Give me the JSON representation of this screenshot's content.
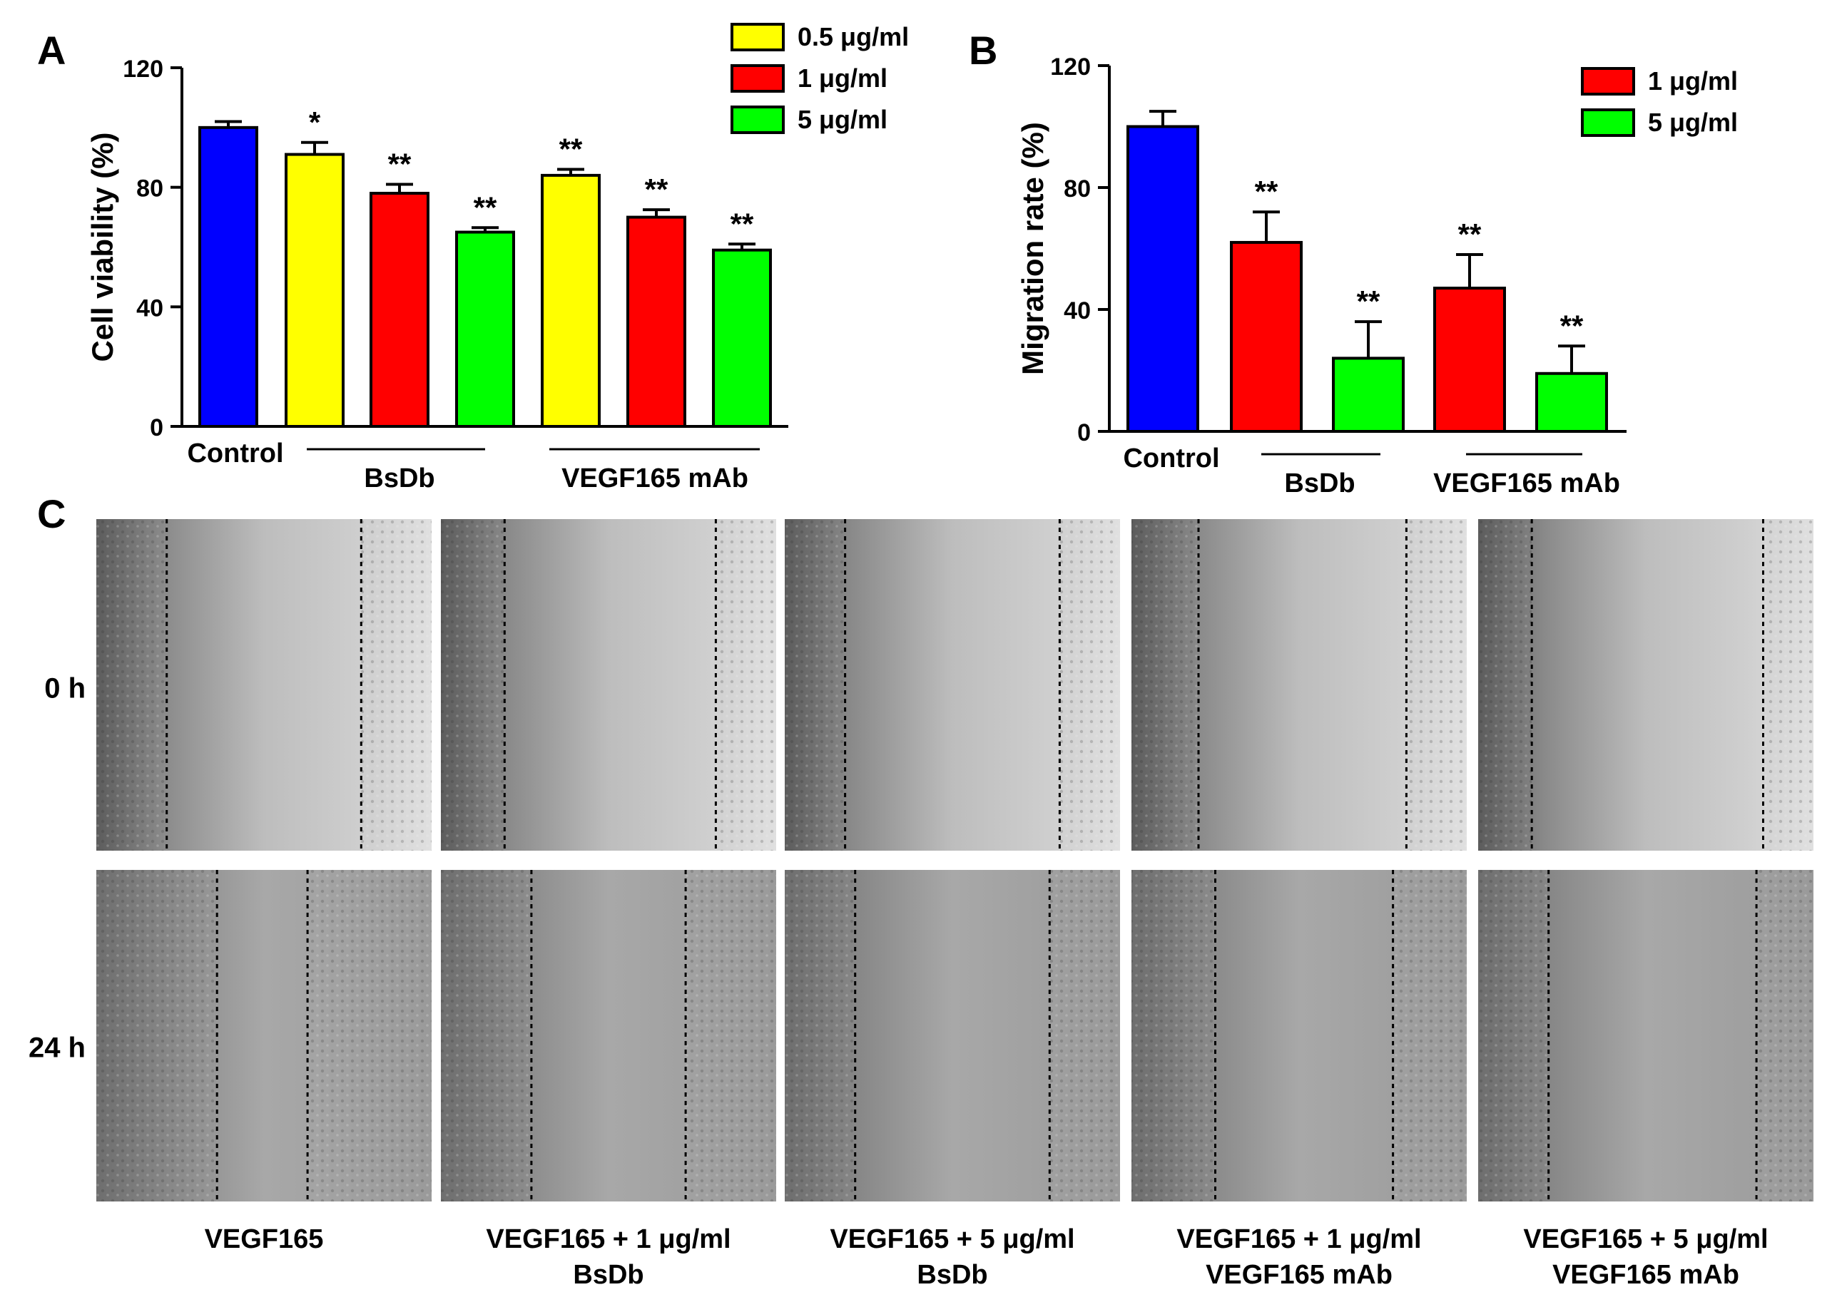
{
  "panel_labels": {
    "a": "A",
    "b": "B",
    "c": "C"
  },
  "colors": {
    "control": "#0000ff",
    "low": "#ffff00",
    "mid": "#ff0000",
    "high": "#00ff00"
  },
  "chart_data": [
    {
      "id": "A",
      "type": "bar",
      "title": "",
      "ylabel": "Cell viability (%)",
      "ylim": [
        0,
        120
      ],
      "yticks": [
        "0",
        "40",
        "80",
        "120"
      ],
      "categories": [
        "Control",
        "BsDb 0.5 µg/ml",
        "BsDb 1 µg/ml",
        "BsDb 5 µg/ml",
        "VEGF165 mAb 0.5 µg/ml",
        "VEGF165 mAb 1 µg/ml",
        "VEGF165 mAb 5 µg/ml"
      ],
      "values": [
        100,
        91,
        78,
        65,
        84,
        70,
        59
      ],
      "errors": [
        2,
        4,
        3,
        1.5,
        2,
        2.5,
        2
      ],
      "significance": [
        "",
        "*",
        "**",
        "**",
        "**",
        "**",
        "**"
      ],
      "bar_colors": [
        "#0000ff",
        "#ffff00",
        "#ff0000",
        "#00ff00",
        "#ffff00",
        "#ff0000",
        "#00ff00"
      ],
      "x_labels": {
        "control": "Control",
        "group1": "BsDb",
        "group2": "VEGF165 mAb"
      },
      "legend": [
        {
          "label": "0.5 μg/ml",
          "color": "#ffff00"
        },
        {
          "label": "1 μg/ml",
          "color": "#ff0000"
        },
        {
          "label": "5 μg/ml",
          "color": "#00ff00"
        }
      ]
    },
    {
      "id": "B",
      "type": "bar",
      "title": "",
      "ylabel": "Migration rate (%)",
      "ylim": [
        0,
        120
      ],
      "yticks": [
        "0",
        "40",
        "80",
        "120"
      ],
      "categories": [
        "Control",
        "BsDb 1 µg/ml",
        "BsDb 5 µg/ml",
        "VEGF165 mAb 1 µg/ml",
        "VEGF165 mAb 5 µg/ml"
      ],
      "values": [
        100,
        62,
        24,
        47,
        19
      ],
      "errors": [
        5,
        10,
        12,
        11,
        9
      ],
      "significance": [
        "",
        "**",
        "**",
        "**",
        "**"
      ],
      "bar_colors": [
        "#0000ff",
        "#ff0000",
        "#00ff00",
        "#ff0000",
        "#00ff00"
      ],
      "x_labels": {
        "control": "Control",
        "group1": "BsDb",
        "group2": "VEGF165 mAb"
      },
      "legend": [
        {
          "label": "1 μg/ml",
          "color": "#ff0000"
        },
        {
          "label": "5 μg/ml",
          "color": "#00ff00"
        }
      ]
    }
  ],
  "panel_c": {
    "rows": [
      "0 h",
      "24 h"
    ],
    "columns": [
      {
        "line1": "VEGF165",
        "line2": ""
      },
      {
        "line1": "VEGF165 + 1 μg/ml",
        "line2": "BsDb"
      },
      {
        "line1": "VEGF165 + 5 μg/ml",
        "line2": "BsDb"
      },
      {
        "line1": "VEGF165 + 1 μg/ml",
        "line2": "VEGF165 mAb"
      },
      {
        "line1": "VEGF165 + 5 μg/ml",
        "line2": "VEGF165 mAb"
      }
    ]
  }
}
